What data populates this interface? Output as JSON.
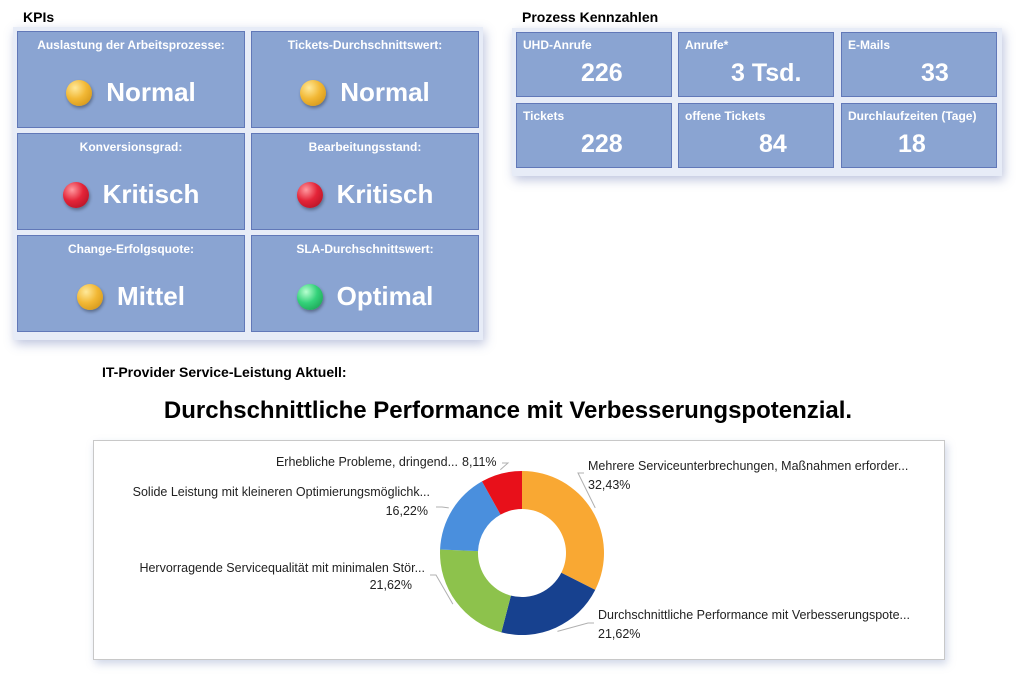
{
  "kpis": {
    "title": "KPIs",
    "items": [
      {
        "label": "Auslastung der Arbeitsprozesse:",
        "status": "Normal",
        "light": "yellow"
      },
      {
        "label": "Tickets-Durchschnittswert:",
        "status": "Normal",
        "light": "yellow"
      },
      {
        "label": "Konversionsgrad:",
        "status": "Kritisch",
        "light": "red"
      },
      {
        "label": "Bearbeitungsstand:",
        "status": "Kritisch",
        "light": "red"
      },
      {
        "label": "Change-Erfolgsquote:",
        "status": "Mittel",
        "light": "yellow"
      },
      {
        "label": "SLA-Durchschnittswert:",
        "status": "Optimal",
        "light": "green"
      }
    ]
  },
  "process": {
    "title": "Prozess Kennzahlen",
    "items": [
      {
        "label": "UHD-Anrufe",
        "value": "226"
      },
      {
        "label": "Anrufe*",
        "value": "3 Tsd."
      },
      {
        "label": "E-Mails",
        "value": "33"
      },
      {
        "label": "Tickets",
        "value": "228"
      },
      {
        "label": "offene Tickets",
        "value": "84"
      },
      {
        "label": "Durchlaufzeiten (Tage)",
        "value": "18"
      }
    ]
  },
  "service": {
    "section_title": "IT-Provider Service-Leistung Aktuell:",
    "heading": "Durchschnittliche Performance mit Verbesserungspotenzial."
  },
  "colors": {
    "tile": "#8aa4d2",
    "yellow": "#f2b835",
    "red": "#e42438",
    "green": "#34d27a"
  },
  "chart_data": {
    "type": "pie",
    "title": "",
    "slices": [
      {
        "label": "Mehrere Serviceunterbrechungen, Maßnahmen erforder...",
        "value": 32.43,
        "value_label": "32,43%",
        "color": "#f9a833"
      },
      {
        "label": "Durchschnittliche Performance mit Verbesserungspote...",
        "value": 21.62,
        "value_label": "21,62%",
        "color": "#17418f"
      },
      {
        "label": "Hervorragende Servicequalität mit minimalen Stör...",
        "value": 21.62,
        "value_label": "21,62%",
        "color": "#8dc24c"
      },
      {
        "label": "Solide Leistung mit kleineren Optimierungsmöglichk...",
        "value": 16.22,
        "value_label": "16,22%",
        "color": "#4a8fdd"
      },
      {
        "label": "Erhebliche Probleme, dringend...",
        "value": 8.11,
        "value_label": "8,11%",
        "color": "#e8101a"
      }
    ]
  }
}
